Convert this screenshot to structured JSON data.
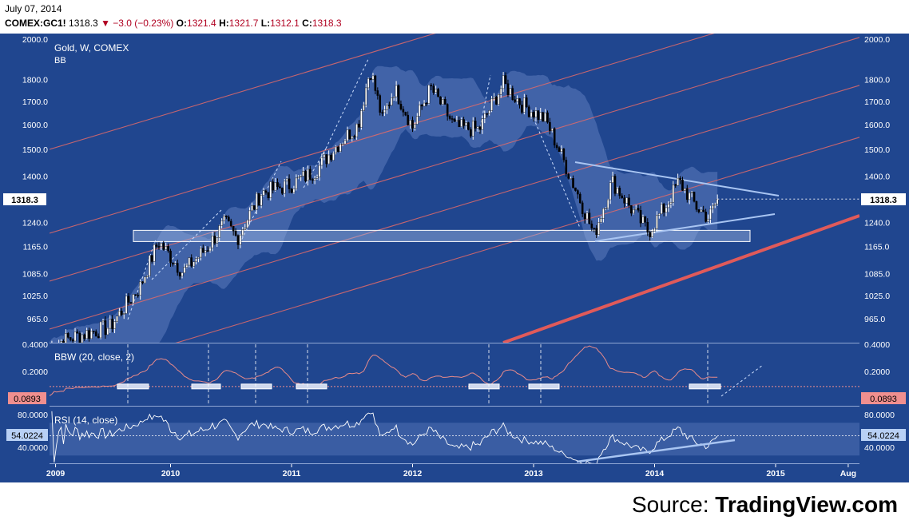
{
  "header": {
    "date": "July 07, 2014",
    "symbol": "COMEX:GC1!",
    "last": "1318.3",
    "change": "▼ −3.0 (−0.23%)",
    "o_label": "O:",
    "o": "1321.4",
    "h_label": "H:",
    "h": "1321.7",
    "l_label": "L:",
    "l": "1312.1",
    "c_label": "C:",
    "c": "1318.3"
  },
  "main_pane": {
    "title": "Gold, W, COMEX",
    "indicator": "BB",
    "price_tag": "1318.3",
    "y_ticks": [
      "2000.0",
      "1800.0",
      "1700.0",
      "1600.0",
      "1500.0",
      "1400.0",
      "1240.0",
      "1165.0",
      "1085.0",
      "1025.0",
      "965.0"
    ]
  },
  "bbw_pane": {
    "label": "BBW (20, close, 2)",
    "value_tag": "0.0893",
    "y_ticks": [
      "0.4000",
      "0.2000"
    ]
  },
  "rsi_pane": {
    "label": "RSI (14, close)",
    "value_tag": "54.0224",
    "y_ticks": [
      "80.0000",
      "40.0000"
    ]
  },
  "x_axis": {
    "labels": [
      "2009",
      "2010",
      "2011",
      "2012",
      "2013",
      "2014",
      "2015",
      "Aug"
    ]
  },
  "source": {
    "prefix": "Source: ",
    "brand": "TradingView.com"
  },
  "colors": {
    "background": "#20468f",
    "candle_up": "#ffffff",
    "candle_down": "#000000",
    "bb_band": "#5c7bbd",
    "channel_line": "#e06a6a",
    "support_line": "#e05a5a",
    "triangle_line": "#a9c5f2",
    "bbw_line": "#e88a8a",
    "rsi_line": "#ffffff"
  },
  "chart_data": {
    "type": "candlestick",
    "title": "Gold, W, COMEX",
    "timeframe": "weekly",
    "x_range": [
      "2009",
      "2015-08"
    ],
    "y_scale": "log",
    "ylim": [
      930,
      2000
    ],
    "price_path": [
      {
        "t": 2009.0,
        "close": 900
      },
      {
        "t": 2009.2,
        "close": 920
      },
      {
        "t": 2009.5,
        "close": 945
      },
      {
        "t": 2009.75,
        "close": 1050
      },
      {
        "t": 2009.9,
        "close": 1180
      },
      {
        "t": 2010.1,
        "close": 1090
      },
      {
        "t": 2010.3,
        "close": 1160
      },
      {
        "t": 2010.45,
        "close": 1240
      },
      {
        "t": 2010.55,
        "close": 1190
      },
      {
        "t": 2010.75,
        "close": 1340
      },
      {
        "t": 2011.0,
        "close": 1370
      },
      {
        "t": 2011.2,
        "close": 1420
      },
      {
        "t": 2011.4,
        "close": 1530
      },
      {
        "t": 2011.55,
        "close": 1600
      },
      {
        "t": 2011.65,
        "close": 1850
      },
      {
        "t": 2011.75,
        "close": 1620
      },
      {
        "t": 2011.85,
        "close": 1760
      },
      {
        "t": 2012.0,
        "close": 1590
      },
      {
        "t": 2012.15,
        "close": 1760
      },
      {
        "t": 2012.35,
        "close": 1590
      },
      {
        "t": 2012.55,
        "close": 1580
      },
      {
        "t": 2012.75,
        "close": 1780
      },
      {
        "t": 2012.9,
        "close": 1690
      },
      {
        "t": 2013.1,
        "close": 1620
      },
      {
        "t": 2013.3,
        "close": 1400
      },
      {
        "t": 2013.45,
        "close": 1250
      },
      {
        "t": 2013.5,
        "close": 1200
      },
      {
        "t": 2013.65,
        "close": 1380
      },
      {
        "t": 2013.8,
        "close": 1290
      },
      {
        "t": 2013.95,
        "close": 1210
      },
      {
        "t": 2014.1,
        "close": 1300
      },
      {
        "t": 2014.2,
        "close": 1380
      },
      {
        "t": 2014.35,
        "close": 1290
      },
      {
        "t": 2014.45,
        "close": 1255
      },
      {
        "t": 2014.52,
        "close": 1318.3
      }
    ],
    "support_zone": {
      "low": 1180,
      "high": 1215
    },
    "panes": [
      {
        "name": "BBW (20, close, 2)",
        "last": 0.0893,
        "ylim": [
          0,
          0.4
        ]
      },
      {
        "name": "RSI (14, close)",
        "last": 54.0224,
        "ylim": [
          20,
          80
        ]
      }
    ]
  }
}
